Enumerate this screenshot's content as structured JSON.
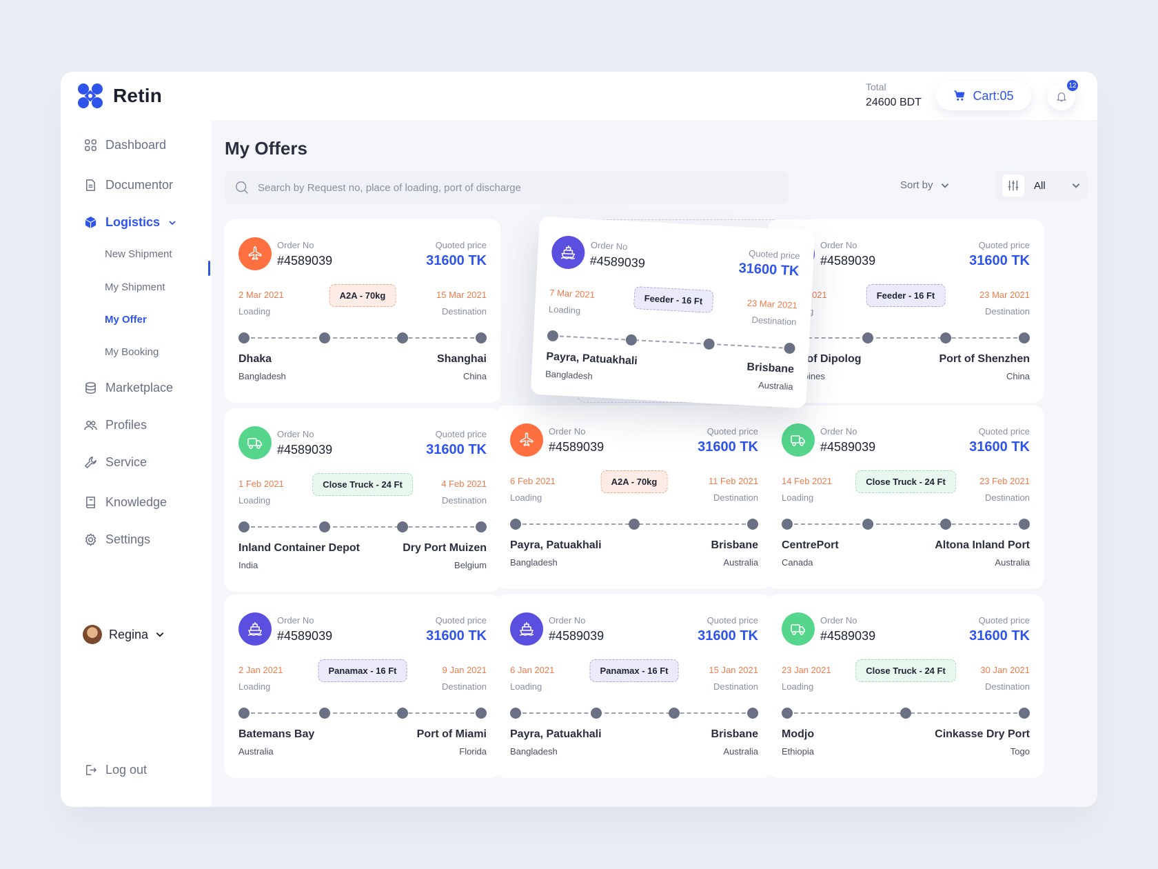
{
  "app": {
    "name": "Retin"
  },
  "header": {
    "total_label": "Total",
    "total_value": "24600 BDT",
    "cart_label": "Cart:05",
    "notification_count": "12"
  },
  "sidebar": {
    "items": [
      {
        "label": "Dashboard",
        "icon": "grid-icon"
      },
      {
        "label": "Documentor",
        "icon": "document-icon"
      },
      {
        "label": "Logistics",
        "icon": "cube-icon",
        "active": true
      },
      {
        "label": "Marketplace",
        "icon": "database-icon"
      },
      {
        "label": "Profiles",
        "icon": "users-icon"
      },
      {
        "label": "Service",
        "icon": "wrench-icon"
      },
      {
        "label": "Knowledge",
        "icon": "book-icon"
      },
      {
        "label": "Settings",
        "icon": "gear-icon"
      }
    ],
    "sub_items": [
      {
        "label": "New Shipment"
      },
      {
        "label": "My Shipment"
      },
      {
        "label": "My Offer",
        "active": true
      },
      {
        "label": "My Booking"
      }
    ],
    "user_name": "Regina",
    "logout_label": "Log out"
  },
  "main": {
    "title": "My Offers",
    "search_placeholder": "Search by Request no, place of loading, port of discharge",
    "sort_label": "Sort by",
    "filter_value": "All"
  },
  "colors": {
    "accent": "#2f54eb",
    "date": "#f07a4a",
    "air": "#ff7040",
    "sea": "#5b4fe0",
    "truck": "#56d58c"
  },
  "labels": {
    "order_no": "Order No",
    "quoted_price": "Quoted price",
    "loading": "Loading",
    "destination": "Destination"
  },
  "cards": [
    {
      "type": "air",
      "order": "#4589039",
      "price": "31600 TK",
      "load_date": "2 Mar 2021",
      "dest_date": "15 Mar 2021",
      "badge": "A2A - 70kg",
      "badge_color": "orange",
      "from": "Dhaka",
      "from_country": "Bangladesh",
      "to": "Shanghai",
      "to_country": "China",
      "stops": [
        0,
        0.34,
        0.67,
        1
      ]
    },
    {
      "type": "sea",
      "order": "#4589039",
      "price": "31600 TK",
      "load_date": "7 Mar 2021",
      "dest_date": "23 Mar 2021",
      "badge": "Feeder - 16 Ft",
      "badge_color": "purple",
      "from": "Payra, Patuakhali",
      "from_country": "Bangladesh",
      "to": "Brisbane",
      "to_country": "Australia",
      "stops": [
        0,
        0.33,
        0.66,
        1
      ],
      "floating": true
    },
    {
      "type": "sea",
      "order": "#4589039",
      "price": "31600 TK",
      "load_date": "2 Mar 2021",
      "dest_date": "23 Mar 2021",
      "badge": "Feeder - 16 Ft",
      "badge_color": "purple",
      "from": "Port of Dipolog",
      "from_country": "Philippines",
      "to": "Port of Shenzhen",
      "to_country": "China",
      "stops": [
        0,
        0.34,
        0.67,
        1
      ]
    },
    {
      "type": "truck",
      "order": "#4589039",
      "price": "31600 TK",
      "load_date": "1 Feb 2021",
      "dest_date": "4 Feb 2021",
      "badge": "Close Truck - 24 Ft",
      "badge_color": "green",
      "from": "Inland Container Depot",
      "from_country": "India",
      "to": "Dry Port Muizen",
      "to_country": "Belgium",
      "stops": [
        0,
        0.34,
        0.67,
        1
      ]
    },
    {
      "type": "air",
      "order": "#4589039",
      "price": "31600 TK",
      "load_date": "6 Feb 2021",
      "dest_date": "11 Feb 2021",
      "badge": "A2A - 70kg",
      "badge_color": "orange",
      "from": "Payra, Patuakhali",
      "from_country": "Bangladesh",
      "to": "Brisbane",
      "to_country": "Australia",
      "stops": [
        0,
        0.5,
        1
      ]
    },
    {
      "type": "truck",
      "order": "#4589039",
      "price": "31600 TK",
      "load_date": "14 Feb 2021",
      "dest_date": "23 Feb 2021",
      "badge": "Close Truck - 24 Ft",
      "badge_color": "green",
      "from": "CentrePort",
      "from_country": "Canada",
      "to": "Altona Inland Port",
      "to_country": "Australia",
      "stops": [
        0,
        0.34,
        0.67,
        1
      ]
    },
    {
      "type": "sea",
      "order": "#4589039",
      "price": "31600 TK",
      "load_date": "2 Jan 2021",
      "dest_date": "9 Jan 2021",
      "badge": "Panamax - 16 Ft",
      "badge_color": "purple",
      "from": "Batemans Bay",
      "from_country": "Australia",
      "to": "Port of Miami",
      "to_country": "Florida",
      "stops": [
        0,
        0.34,
        0.67,
        1
      ]
    },
    {
      "type": "sea",
      "order": "#4589039",
      "price": "31600 TK",
      "load_date": "6 Jan 2021",
      "dest_date": "15 Jan 2021",
      "badge": "Panamax - 16 Ft",
      "badge_color": "purple",
      "from": "Payra, Patuakhali",
      "from_country": "Bangladesh",
      "to": "Brisbane",
      "to_country": "Australia",
      "stops": [
        0,
        0.34,
        0.67,
        1
      ]
    },
    {
      "type": "truck",
      "order": "#4589039",
      "price": "31600 TK",
      "load_date": "23 Jan 2021",
      "dest_date": "30 Jan 2021",
      "badge": "Close Truck - 24 Ft",
      "badge_color": "green",
      "from": "Modjo",
      "from_country": "Ethiopia",
      "to": "Cinkasse Dry Port",
      "to_country": "Togo",
      "stops": [
        0,
        0.5,
        1
      ]
    }
  ]
}
